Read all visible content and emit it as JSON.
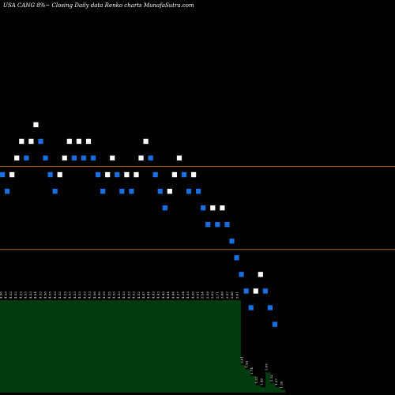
{
  "chart_data": {
    "type": "renko",
    "title": "USA CANG 8%~  Closing Daily data  Renko  charts MunafaSutra.com",
    "colors": {
      "up": "#ffffff",
      "down": "#1a6fe0",
      "background": "#000000",
      "hline": "#b06a22",
      "volume": "#013a0d",
      "volume_label": "#ffffff"
    },
    "levels": [
      6.6,
      4.6
    ],
    "ylim": [
      1.1,
      10.6
    ],
    "bricks": [
      {
        "v": 6.4,
        "d": "down"
      },
      {
        "v": 6.0,
        "d": "down"
      },
      {
        "v": 6.4,
        "d": "up"
      },
      {
        "v": 6.8,
        "d": "up"
      },
      {
        "v": 7.2,
        "d": "up"
      },
      {
        "v": 6.8,
        "d": "down"
      },
      {
        "v": 7.2,
        "d": "up"
      },
      {
        "v": 7.6,
        "d": "up"
      },
      {
        "v": 7.2,
        "d": "down"
      },
      {
        "v": 6.8,
        "d": "down"
      },
      {
        "v": 6.4,
        "d": "down"
      },
      {
        "v": 6.0,
        "d": "down"
      },
      {
        "v": 6.4,
        "d": "up"
      },
      {
        "v": 6.8,
        "d": "up"
      },
      {
        "v": 7.2,
        "d": "up"
      },
      {
        "v": 6.8,
        "d": "down"
      },
      {
        "v": 7.2,
        "d": "up"
      },
      {
        "v": 6.8,
        "d": "down"
      },
      {
        "v": 7.2,
        "d": "up"
      },
      {
        "v": 6.8,
        "d": "down"
      },
      {
        "v": 6.4,
        "d": "down"
      },
      {
        "v": 6.0,
        "d": "down"
      },
      {
        "v": 6.4,
        "d": "up"
      },
      {
        "v": 6.8,
        "d": "up"
      },
      {
        "v": 6.4,
        "d": "down"
      },
      {
        "v": 6.0,
        "d": "down"
      },
      {
        "v": 6.4,
        "d": "up"
      },
      {
        "v": 6.0,
        "d": "down"
      },
      {
        "v": 6.4,
        "d": "up"
      },
      {
        "v": 6.8,
        "d": "up"
      },
      {
        "v": 7.2,
        "d": "up"
      },
      {
        "v": 6.8,
        "d": "down"
      },
      {
        "v": 6.4,
        "d": "down"
      },
      {
        "v": 6.0,
        "d": "down"
      },
      {
        "v": 5.6,
        "d": "down"
      },
      {
        "v": 6.0,
        "d": "up"
      },
      {
        "v": 6.4,
        "d": "up"
      },
      {
        "v": 6.8,
        "d": "up"
      },
      {
        "v": 6.4,
        "d": "down"
      },
      {
        "v": 6.0,
        "d": "down"
      },
      {
        "v": 6.4,
        "d": "up"
      },
      {
        "v": 6.0,
        "d": "down"
      },
      {
        "v": 5.6,
        "d": "down"
      },
      {
        "v": 5.2,
        "d": "down"
      },
      {
        "v": 5.6,
        "d": "up"
      },
      {
        "v": 5.2,
        "d": "down"
      },
      {
        "v": 5.6,
        "d": "up"
      },
      {
        "v": 5.2,
        "d": "down"
      },
      {
        "v": 4.8,
        "d": "down"
      },
      {
        "v": 4.4,
        "d": "down"
      },
      {
        "v": 4.0,
        "d": "down"
      },
      {
        "v": 3.6,
        "d": "down"
      },
      {
        "v": 3.2,
        "d": "down"
      },
      {
        "v": 3.6,
        "d": "up"
      },
      {
        "v": 4.0,
        "d": "up"
      },
      {
        "v": 3.6,
        "d": "down"
      },
      {
        "v": 3.2,
        "d": "down"
      },
      {
        "v": 2.8,
        "d": "down"
      }
    ],
    "volume_labels": [
      "4.56",
      "4.53",
      "4.52",
      "4.53",
      "4.53",
      "4.53",
      "4.53",
      "4.54",
      "4.53",
      "4.56",
      "4.53",
      "4.53",
      "4.53",
      "4.53",
      "4.53",
      "4.53",
      "4.53",
      "4.53",
      "4.53",
      "4.56",
      "4.50",
      "4.55",
      "4.55",
      "4.53",
      "4.53",
      "4.53",
      "4.53",
      "4.53",
      "4.52",
      "4.47",
      "4.44",
      "4.43",
      "4.43",
      "4.43",
      "4.44",
      "4.44",
      "4.37",
      "4.34",
      "4.35",
      "4.36",
      "3.51",
      "3.54",
      "3.58",
      "3.62",
      "3.71",
      "3.60",
      "3.57",
      "3.60",
      "3.61",
      "2.01",
      "1.93",
      "1.74",
      "1.51",
      "1.48",
      "1.65",
      "1.52",
      "1.37",
      "1.20"
    ],
    "volume_values": [
      100,
      100,
      100,
      100,
      100,
      100,
      100,
      100,
      100,
      100,
      100,
      100,
      100,
      100,
      100,
      100,
      100,
      100,
      100,
      100,
      100,
      100,
      100,
      100,
      100,
      100,
      100,
      100,
      100,
      100,
      100,
      100,
      100,
      100,
      100,
      100,
      100,
      100,
      100,
      100,
      100,
      100,
      100,
      100,
      100,
      100,
      100,
      100,
      100,
      30,
      25,
      18,
      8,
      6,
      22,
      10,
      6,
      3
    ]
  }
}
